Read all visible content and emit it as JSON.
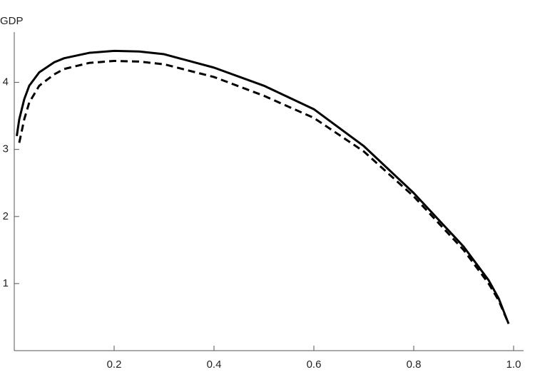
{
  "chart_data": {
    "type": "line",
    "y_label": "GDP",
    "x": [
      0.005,
      0.01,
      0.02,
      0.03,
      0.05,
      0.08,
      0.1,
      0.15,
      0.2,
      0.25,
      0.3,
      0.4,
      0.5,
      0.6,
      0.7,
      0.8,
      0.85,
      0.9,
      0.95,
      0.97,
      0.99
    ],
    "series": [
      {
        "color": "#000000",
        "dash": "solid",
        "values": [
          3.2,
          3.45,
          3.75,
          3.95,
          4.15,
          4.3,
          4.36,
          4.44,
          4.47,
          4.46,
          4.42,
          4.22,
          3.95,
          3.6,
          3.05,
          2.35,
          1.95,
          1.55,
          1.05,
          0.78,
          0.4
        ]
      },
      {
        "color": "#000000",
        "dash": "dashed",
        "values": [
          null,
          3.1,
          3.45,
          3.7,
          3.95,
          4.12,
          4.2,
          4.29,
          4.32,
          4.31,
          4.27,
          4.08,
          3.8,
          3.47,
          2.97,
          2.3,
          1.9,
          1.5,
          1.0,
          0.75,
          0.4
        ]
      }
    ],
    "xlim": [
      0,
      1.02
    ],
    "ylim": [
      0,
      4.75
    ],
    "xticks": [
      0.2,
      0.4,
      0.6,
      0.8,
      {
        "value": 1.0,
        "label": "1.0"
      }
    ],
    "yticks": [
      1,
      2,
      3,
      4
    ]
  }
}
